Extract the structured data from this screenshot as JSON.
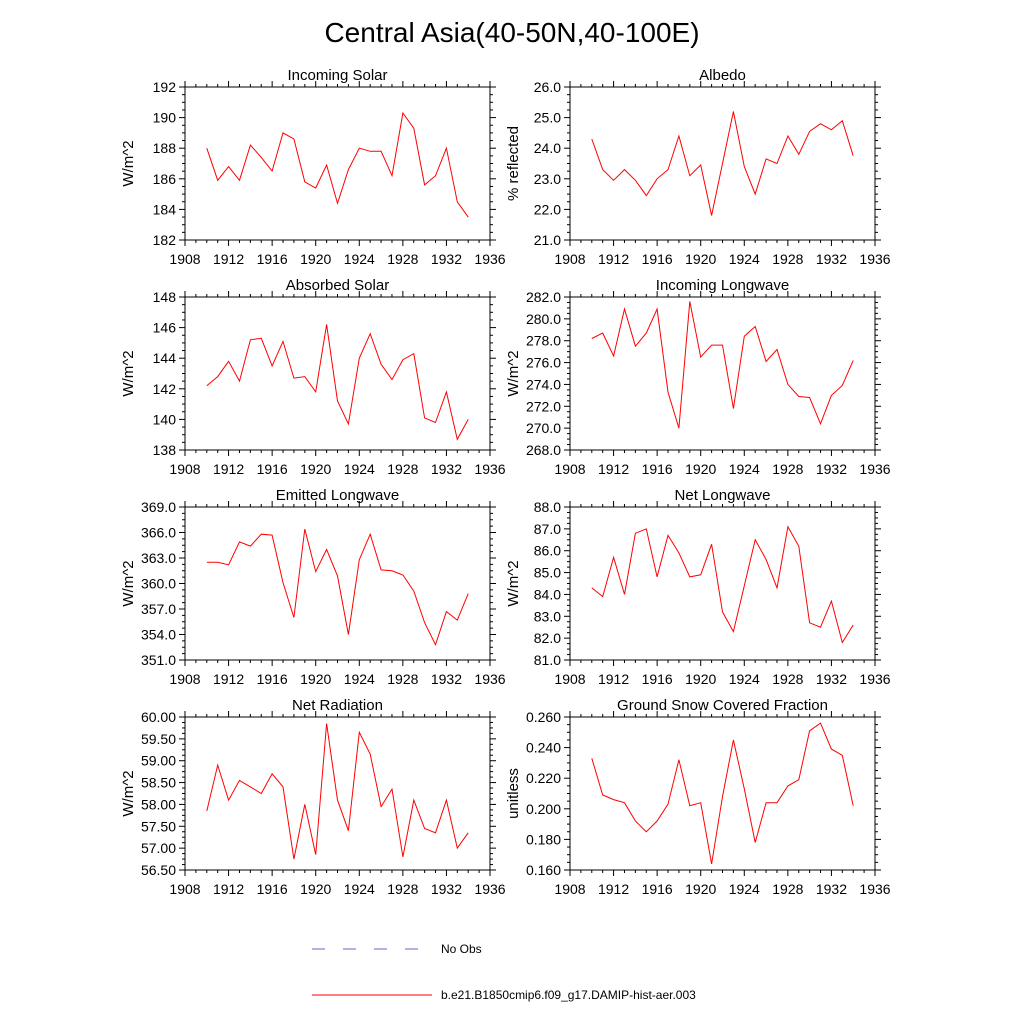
{
  "title": "Central Asia(40-50N,40-100E)",
  "legend": {
    "items": [
      {
        "label": "No Obs",
        "color": "#6666cc",
        "style": "dashed"
      },
      {
        "label": "b.e21.B1850cmip6.f09_g17.DAMIP-hist-aer.003",
        "color": "#ff0000",
        "style": "solid"
      }
    ]
  },
  "chart_data": [
    {
      "type": "line",
      "title": "Incoming Solar",
      "xlabel": "",
      "ylabel": "W/m^2",
      "xlim": [
        1908,
        1936
      ],
      "ylim": [
        182,
        192
      ],
      "xticks": [
        1908,
        1912,
        1916,
        1920,
        1924,
        1928,
        1932,
        1936
      ],
      "xtick_labels": [
        "1908",
        "1912",
        "1916",
        "1920",
        "1924",
        "1928",
        "1932",
        "1936"
      ],
      "yticks": [
        182,
        184,
        186,
        188,
        190,
        192
      ],
      "ytick_labels": [
        "182",
        "184",
        "186",
        "188",
        "190",
        "192"
      ],
      "x": [
        1910,
        1911,
        1912,
        1913,
        1914,
        1915,
        1916,
        1917,
        1918,
        1919,
        1920,
        1921,
        1922,
        1923,
        1924,
        1925,
        1926,
        1927,
        1928,
        1929,
        1930,
        1931,
        1932,
        1933,
        1934
      ],
      "series": [
        {
          "color": "#ff0000",
          "values": [
            188.0,
            185.9,
            186.8,
            185.9,
            188.2,
            187.4,
            186.5,
            189.0,
            188.6,
            185.8,
            185.4,
            186.9,
            184.4,
            186.6,
            188.0,
            187.8,
            187.8,
            186.2,
            190.3,
            189.3,
            185.6,
            186.2,
            188.0,
            184.5,
            183.5
          ]
        }
      ]
    },
    {
      "type": "line",
      "title": "Albedo",
      "xlabel": "",
      "ylabel": "% reflected",
      "xlim": [
        1908,
        1936
      ],
      "ylim": [
        21.0,
        26.0
      ],
      "xticks": [
        1908,
        1912,
        1916,
        1920,
        1924,
        1928,
        1932,
        1936
      ],
      "xtick_labels": [
        "1908",
        "1912",
        "1916",
        "1920",
        "1924",
        "1928",
        "1932",
        "1936"
      ],
      "yticks": [
        21.0,
        22.0,
        23.0,
        24.0,
        25.0,
        26.0
      ],
      "ytick_labels": [
        "21.0",
        "22.0",
        "23.0",
        "24.0",
        "25.0",
        "26.0"
      ],
      "x": [
        1910,
        1911,
        1912,
        1913,
        1914,
        1915,
        1916,
        1917,
        1918,
        1919,
        1920,
        1921,
        1922,
        1923,
        1924,
        1925,
        1926,
        1927,
        1928,
        1929,
        1930,
        1931,
        1932,
        1933,
        1934
      ],
      "series": [
        {
          "color": "#ff0000",
          "values": [
            24.3,
            23.3,
            22.95,
            23.3,
            22.95,
            22.45,
            23.0,
            23.3,
            24.4,
            23.1,
            23.45,
            21.8,
            23.5,
            25.2,
            23.4,
            22.5,
            23.65,
            23.5,
            24.4,
            23.8,
            24.55,
            24.8,
            24.6,
            24.9,
            23.75
          ]
        }
      ]
    },
    {
      "type": "line",
      "title": "Absorbed Solar",
      "xlabel": "",
      "ylabel": "W/m^2",
      "xlim": [
        1908,
        1936
      ],
      "ylim": [
        138,
        148
      ],
      "xticks": [
        1908,
        1912,
        1916,
        1920,
        1924,
        1928,
        1932,
        1936
      ],
      "xtick_labels": [
        "1908",
        "1912",
        "1916",
        "1920",
        "1924",
        "1928",
        "1932",
        "1936"
      ],
      "yticks": [
        138,
        140,
        142,
        144,
        146,
        148
      ],
      "ytick_labels": [
        "138",
        "140",
        "142",
        "144",
        "146",
        "148"
      ],
      "x": [
        1910,
        1911,
        1912,
        1913,
        1914,
        1915,
        1916,
        1917,
        1918,
        1919,
        1920,
        1921,
        1922,
        1923,
        1924,
        1925,
        1926,
        1927,
        1928,
        1929,
        1930,
        1931,
        1932,
        1933,
        1934
      ],
      "series": [
        {
          "color": "#ff0000",
          "values": [
            142.2,
            142.8,
            143.8,
            142.5,
            145.2,
            145.3,
            143.5,
            145.1,
            142.7,
            142.8,
            141.8,
            146.2,
            141.2,
            139.7,
            144.0,
            145.6,
            143.6,
            142.6,
            143.9,
            144.3,
            140.1,
            139.8,
            141.8,
            138.7,
            140.0
          ]
        }
      ]
    },
    {
      "type": "line",
      "title": "Incoming Longwave",
      "xlabel": "",
      "ylabel": "W/m^2",
      "xlim": [
        1908,
        1936
      ],
      "ylim": [
        268.0,
        282.0
      ],
      "xticks": [
        1908,
        1912,
        1916,
        1920,
        1924,
        1928,
        1932,
        1936
      ],
      "xtick_labels": [
        "1908",
        "1912",
        "1916",
        "1920",
        "1924",
        "1928",
        "1932",
        "1936"
      ],
      "yticks": [
        268.0,
        270.0,
        272.0,
        274.0,
        276.0,
        278.0,
        280.0,
        282.0
      ],
      "ytick_labels": [
        "268.0",
        "270.0",
        "272.0",
        "274.0",
        "276.0",
        "278.0",
        "280.0",
        "282.0"
      ],
      "x": [
        1910,
        1911,
        1912,
        1913,
        1914,
        1915,
        1916,
        1917,
        1918,
        1919,
        1920,
        1921,
        1922,
        1923,
        1924,
        1925,
        1926,
        1927,
        1928,
        1929,
        1930,
        1931,
        1932,
        1933,
        1934
      ],
      "series": [
        {
          "color": "#ff0000",
          "values": [
            278.2,
            278.7,
            276.6,
            280.9,
            277.5,
            278.7,
            280.9,
            273.3,
            270.0,
            281.6,
            276.5,
            277.6,
            277.6,
            271.8,
            278.4,
            279.3,
            276.1,
            277.2,
            274.0,
            272.9,
            272.8,
            270.4,
            273.0,
            273.9,
            276.2
          ]
        }
      ]
    },
    {
      "type": "line",
      "title": "Emitted Longwave",
      "xlabel": "",
      "ylabel": "W/m^2",
      "xlim": [
        1908,
        1936
      ],
      "ylim": [
        351.0,
        369.0
      ],
      "xticks": [
        1908,
        1912,
        1916,
        1920,
        1924,
        1928,
        1932,
        1936
      ],
      "xtick_labels": [
        "1908",
        "1912",
        "1916",
        "1920",
        "1924",
        "1928",
        "1932",
        "1936"
      ],
      "yticks": [
        351.0,
        354.0,
        357.0,
        360.0,
        363.0,
        366.0,
        369.0
      ],
      "ytick_labels": [
        "351.0",
        "354.0",
        "357.0",
        "360.0",
        "363.0",
        "366.0",
        "369.0"
      ],
      "x": [
        1910,
        1911,
        1912,
        1913,
        1914,
        1915,
        1916,
        1917,
        1918,
        1919,
        1920,
        1921,
        1922,
        1923,
        1924,
        1925,
        1926,
        1927,
        1928,
        1929,
        1930,
        1931,
        1932,
        1933,
        1934
      ],
      "series": [
        {
          "color": "#ff0000",
          "values": [
            362.5,
            362.5,
            362.2,
            364.9,
            364.4,
            365.8,
            365.7,
            360.1,
            356.0,
            366.4,
            361.4,
            364.0,
            360.9,
            354.0,
            362.8,
            365.8,
            361.6,
            361.5,
            361.0,
            359.1,
            355.4,
            352.8,
            356.7,
            355.7,
            358.8
          ]
        }
      ]
    },
    {
      "type": "line",
      "title": "Net Longwave",
      "xlabel": "",
      "ylabel": "W/m^2",
      "xlim": [
        1908,
        1936
      ],
      "ylim": [
        81.0,
        88.0
      ],
      "xticks": [
        1908,
        1912,
        1916,
        1920,
        1924,
        1928,
        1932,
        1936
      ],
      "xtick_labels": [
        "1908",
        "1912",
        "1916",
        "1920",
        "1924",
        "1928",
        "1932",
        "1936"
      ],
      "yticks": [
        81.0,
        82.0,
        83.0,
        84.0,
        85.0,
        86.0,
        87.0,
        88.0
      ],
      "ytick_labels": [
        "81.0",
        "82.0",
        "83.0",
        "84.0",
        "85.0",
        "86.0",
        "87.0",
        "88.0"
      ],
      "x": [
        1910,
        1911,
        1912,
        1913,
        1914,
        1915,
        1916,
        1917,
        1918,
        1919,
        1920,
        1921,
        1922,
        1923,
        1924,
        1925,
        1926,
        1927,
        1928,
        1929,
        1930,
        1931,
        1932,
        1933,
        1934
      ],
      "series": [
        {
          "color": "#ff0000",
          "values": [
            84.3,
            83.9,
            85.7,
            84.0,
            86.8,
            87.0,
            84.8,
            86.7,
            85.9,
            84.8,
            84.9,
            86.3,
            83.2,
            82.3,
            84.4,
            86.5,
            85.6,
            84.3,
            87.1,
            86.2,
            82.7,
            82.5,
            83.7,
            81.8,
            82.6
          ]
        }
      ]
    },
    {
      "type": "line",
      "title": "Net Radiation",
      "xlabel": "",
      "ylabel": "W/m^2",
      "xlim": [
        1908,
        1936
      ],
      "ylim": [
        56.5,
        60.0
      ],
      "xticks": [
        1908,
        1912,
        1916,
        1920,
        1924,
        1928,
        1932,
        1936
      ],
      "xtick_labels": [
        "1908",
        "1912",
        "1916",
        "1920",
        "1924",
        "1928",
        "1932",
        "1936"
      ],
      "yticks": [
        56.5,
        57.0,
        57.5,
        58.0,
        58.5,
        59.0,
        59.5,
        60.0
      ],
      "ytick_labels": [
        "56.50",
        "57.00",
        "57.50",
        "58.00",
        "58.50",
        "59.00",
        "59.50",
        "60.00"
      ],
      "x": [
        1910,
        1911,
        1912,
        1913,
        1914,
        1915,
        1916,
        1917,
        1918,
        1919,
        1920,
        1921,
        1922,
        1923,
        1924,
        1925,
        1926,
        1927,
        1928,
        1929,
        1930,
        1931,
        1932,
        1933,
        1934
      ],
      "series": [
        {
          "color": "#ff0000",
          "values": [
            57.85,
            58.9,
            58.1,
            58.55,
            58.4,
            58.25,
            58.7,
            58.4,
            56.75,
            58.0,
            56.85,
            59.85,
            58.1,
            57.4,
            59.65,
            59.15,
            57.95,
            58.35,
            56.8,
            58.1,
            57.45,
            57.35,
            58.1,
            57.0,
            57.35
          ]
        }
      ]
    },
    {
      "type": "line",
      "title": "Ground Snow Covered Fraction",
      "xlabel": "",
      "ylabel": "unitless",
      "xlim": [
        1908,
        1936
      ],
      "ylim": [
        0.16,
        0.26
      ],
      "xticks": [
        1908,
        1912,
        1916,
        1920,
        1924,
        1928,
        1932,
        1936
      ],
      "xtick_labels": [
        "1908",
        "1912",
        "1916",
        "1920",
        "1924",
        "1928",
        "1932",
        "1936"
      ],
      "yticks": [
        0.16,
        0.18,
        0.2,
        0.22,
        0.24,
        0.26
      ],
      "ytick_labels": [
        "0.160",
        "0.180",
        "0.200",
        "0.220",
        "0.240",
        "0.260"
      ],
      "x": [
        1910,
        1911,
        1912,
        1913,
        1914,
        1915,
        1916,
        1917,
        1918,
        1919,
        1920,
        1921,
        1922,
        1923,
        1924,
        1925,
        1926,
        1927,
        1928,
        1929,
        1930,
        1931,
        1932,
        1933,
        1934
      ],
      "series": [
        {
          "color": "#ff0000",
          "values": [
            0.233,
            0.209,
            0.206,
            0.204,
            0.192,
            0.185,
            0.192,
            0.203,
            0.232,
            0.202,
            0.204,
            0.164,
            0.208,
            0.245,
            0.213,
            0.178,
            0.204,
            0.204,
            0.215,
            0.219,
            0.251,
            0.256,
            0.239,
            0.235,
            0.202
          ]
        }
      ]
    }
  ]
}
